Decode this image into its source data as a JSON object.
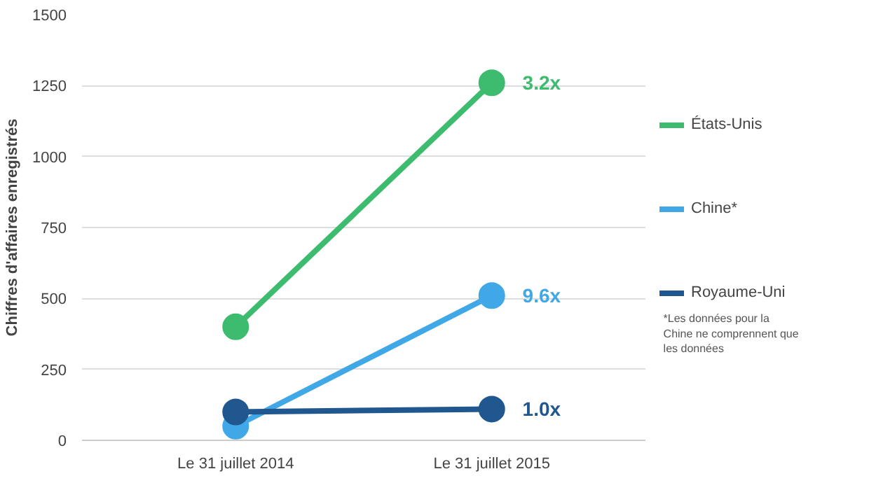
{
  "chart_data": {
    "type": "line",
    "ylabel": "Chiffres d'affaires enregistrés",
    "categories": [
      "Le 31 juillet 2014",
      "Le 31 juillet 2015"
    ],
    "series": [
      {
        "name": "États-Unis",
        "color": "#3dbb6e",
        "values": [
          400,
          1260
        ]
      },
      {
        "name": "Chine*",
        "color": "#41a8e8",
        "values": [
          50,
          510
        ]
      },
      {
        "name": "Royaume-Uni",
        "color": "#21578f",
        "values": [
          100,
          110
        ]
      }
    ],
    "ylim": [
      0,
      1500
    ],
    "yticks": [
      0,
      250,
      500,
      750,
      1000,
      1250,
      1500
    ],
    "grid": "y",
    "legend": "right",
    "marker": "circle",
    "annotations": [
      {
        "text": "3.2x",
        "x": "Le 31 juillet 2015",
        "y": 1260
      },
      {
        "text": "9.6x",
        "x": "Le 31 juillet 2015",
        "y": 510
      },
      {
        "text": "1.0x",
        "x": "Le 31 juillet 2015",
        "y": 110
      },
      "*Les données pour la Chine ne comprennent que les données"
    ]
  }
}
